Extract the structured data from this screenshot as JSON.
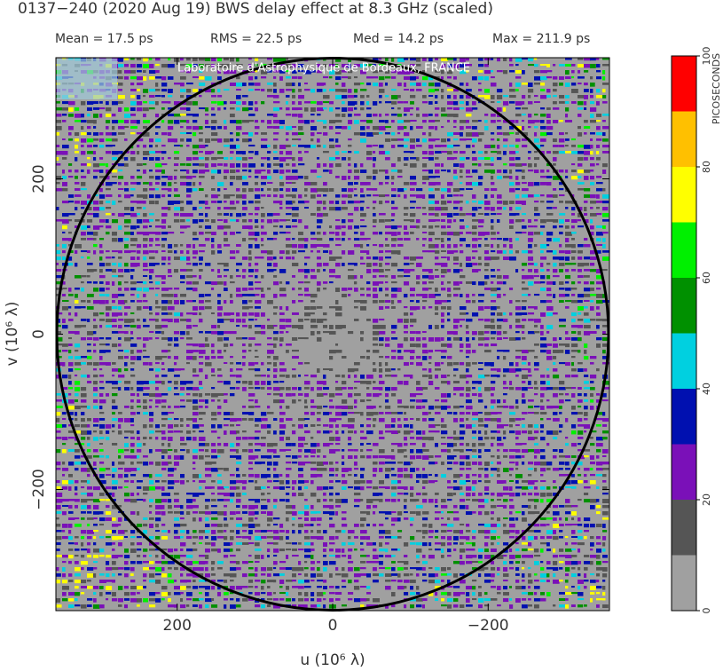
{
  "chart_data": {
    "type": "heatmap",
    "title": "0137−240  (2020 Aug 19)   BWS delay effect at  8.3 GHz (scaled)",
    "stats": [
      "Mean =   17.5 ps",
      "RMS =   22.5 ps",
      "Med =   14.2 ps",
      "Max =  211.9 ps"
    ],
    "watermark": "Laboratoire d'Astrophysique de Bordeaux, FRANCE",
    "xlabel": "u  (10⁶ λ)",
    "ylabel": "v  (10⁶ λ)",
    "xlim": [
      356,
      -356
    ],
    "ylim": [
      -356,
      356
    ],
    "xticks": [
      200,
      0,
      {
        "value": -200,
        "label": "−200"
      }
    ],
    "yticks": [
      {
        "value": -200,
        "label": "−200"
      },
      0,
      200
    ],
    "colorbar": {
      "label": "PICOSECONDS",
      "bins": [
        0,
        10,
        20,
        30,
        40,
        50,
        60,
        70,
        80,
        90,
        100
      ],
      "colors": [
        "#a0a0a0",
        "#555555",
        "#7a10b8",
        "#0010b0",
        "#00d0e0",
        "#009000",
        "#00f000",
        "#ffff00",
        "#ffc000",
        "#ff0000"
      ],
      "ticks": [
        0,
        20,
        40,
        60,
        80,
        100
      ]
    }
  }
}
